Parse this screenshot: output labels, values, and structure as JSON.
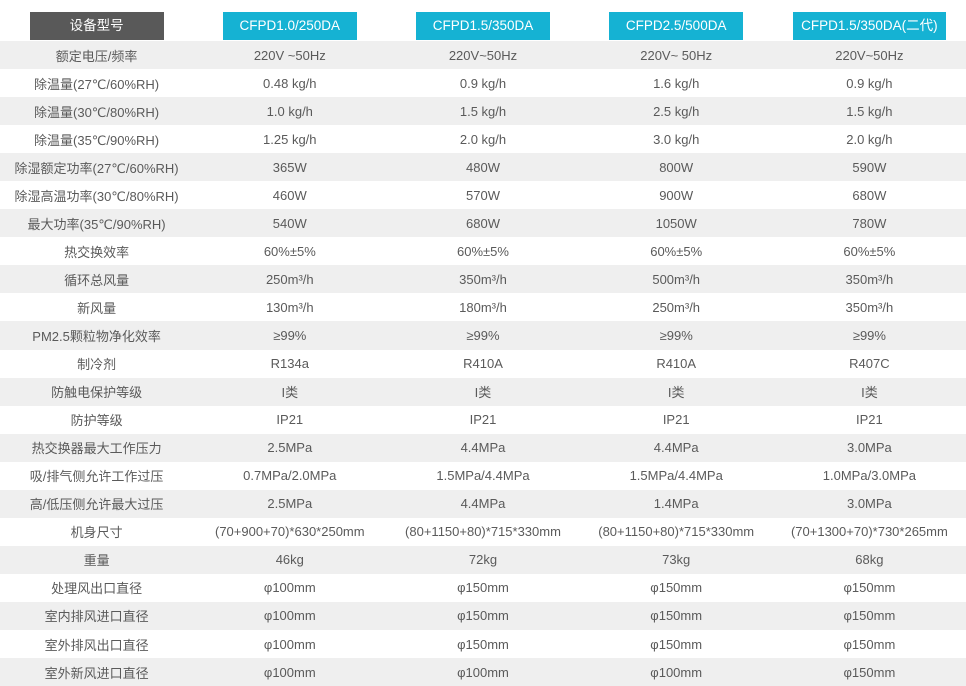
{
  "table": {
    "header": {
      "label": "设备型号",
      "models": [
        "CFPD1.0/250DA",
        "CFPD1.5/350DA",
        "CFPD2.5/500DA",
        "CFPD1.5/350DA(二代)"
      ]
    },
    "rows": [
      {
        "label": "额定电压/频率",
        "values": [
          "220V ~50Hz",
          "220V~50Hz",
          "220V~ 50Hz",
          "220V~50Hz"
        ]
      },
      {
        "label": "除温量(27℃/60%RH)",
        "values": [
          "0.48 kg/h",
          "0.9 kg/h",
          "1.6 kg/h",
          "0.9 kg/h"
        ]
      },
      {
        "label": "除温量(30℃/80%RH)",
        "values": [
          "1.0 kg/h",
          "1.5 kg/h",
          "2.5 kg/h",
          "1.5 kg/h"
        ]
      },
      {
        "label": "除温量(35℃/90%RH)",
        "values": [
          "1.25 kg/h",
          "2.0 kg/h",
          "3.0 kg/h",
          "2.0 kg/h"
        ]
      },
      {
        "label": "除湿额定功率(27℃/60%RH)",
        "values": [
          "365W",
          "480W",
          "800W",
          "590W"
        ]
      },
      {
        "label": "除湿高温功率(30℃/80%RH)",
        "values": [
          "460W",
          "570W",
          "900W",
          "680W"
        ]
      },
      {
        "label": "最大功率(35℃/90%RH)",
        "values": [
          "540W",
          "680W",
          "1050W",
          "780W"
        ]
      },
      {
        "label": "热交换效率",
        "values": [
          "60%±5%",
          "60%±5%",
          "60%±5%",
          "60%±5%"
        ]
      },
      {
        "label": "循环总风量",
        "values": [
          "250m³/h",
          "350m³/h",
          "500m³/h",
          "350m³/h"
        ]
      },
      {
        "label": "新风量",
        "values": [
          "130m³/h",
          "180m³/h",
          "250m³/h",
          "350m³/h"
        ]
      },
      {
        "label": "PM2.5颗粒物净化效率",
        "values": [
          "≥99%",
          "≥99%",
          "≥99%",
          "≥99%"
        ]
      },
      {
        "label": "制冷剂",
        "values": [
          "R134a",
          "R410A",
          "R410A",
          "R407C"
        ]
      },
      {
        "label": "防触电保护等级",
        "values": [
          "I类",
          "I类",
          "I类",
          "I类"
        ]
      },
      {
        "label": "防护等级",
        "values": [
          "IP21",
          "IP21",
          "IP21",
          "IP21"
        ]
      },
      {
        "label": "热交换器最大工作压力",
        "values": [
          "2.5MPa",
          "4.4MPa",
          "4.4MPa",
          "3.0MPa"
        ]
      },
      {
        "label": "吸/排气侧允许工作过压",
        "values": [
          "0.7MPa/2.0MPa",
          "1.5MPa/4.4MPa",
          "1.5MPa/4.4MPa",
          "1.0MPa/3.0MPa"
        ]
      },
      {
        "label": "高/低压侧允许最大过压",
        "values": [
          "2.5MPa",
          "4.4MPa",
          "1.4MPa",
          "3.0MPa"
        ]
      },
      {
        "label": "机身尺寸",
        "values": [
          "(70+900+70)*630*250mm",
          "(80+1150+80)*715*330mm",
          "(80+1150+80)*715*330mm",
          "(70+1300+70)*730*265mm"
        ]
      },
      {
        "label": "重量",
        "values": [
          "46kg",
          "72kg",
          "73kg",
          "68kg"
        ]
      },
      {
        "label": "处理风出口直径",
        "values": [
          "φ100mm",
          "φ150mm",
          "φ150mm",
          "φ150mm"
        ]
      },
      {
        "label": "室内排风进口直径",
        "values": [
          "φ100mm",
          "φ150mm",
          "φ150mm",
          "φ150mm"
        ]
      },
      {
        "label": "室外排风出口直径",
        "values": [
          "φ100mm",
          "φ150mm",
          "φ150mm",
          "φ150mm"
        ]
      },
      {
        "label": "室外新风进口直径",
        "values": [
          "φ100mm",
          "φ100mm",
          "φ100mm",
          "φ150mm"
        ]
      }
    ],
    "colors": {
      "accent_cyan": "#15b2d3",
      "header_gray": "#595959",
      "row_alt": "#efefef",
      "text_gray": "#5a5a5a"
    }
  }
}
